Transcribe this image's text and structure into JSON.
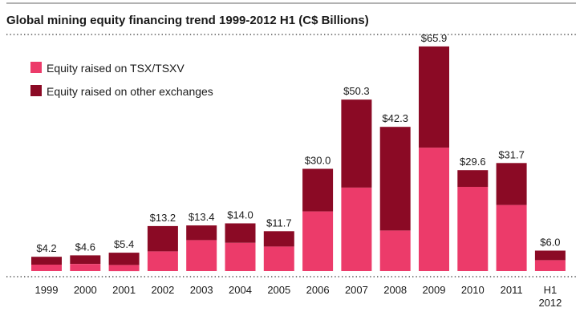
{
  "chart_data": {
    "type": "bar",
    "stacked": true,
    "title": "Global mining equity financing trend 1999-2012 H1 (C$ Billions)",
    "categories": [
      "1999",
      "2000",
      "2001",
      "2002",
      "2003",
      "2004",
      "2005",
      "2006",
      "2007",
      "2008",
      "2009",
      "2010",
      "2011",
      "H1 2012"
    ],
    "category_labels": [
      [
        "1999"
      ],
      [
        "2000"
      ],
      [
        "2001"
      ],
      [
        "2002"
      ],
      [
        "2003"
      ],
      [
        "2004"
      ],
      [
        "2005"
      ],
      [
        "2006"
      ],
      [
        "2007"
      ],
      [
        "2008"
      ],
      [
        "2009"
      ],
      [
        "2010"
      ],
      [
        "2011"
      ],
      [
        "H1",
        "2012"
      ]
    ],
    "totals": [
      4.2,
      4.6,
      5.4,
      13.2,
      13.4,
      14.0,
      11.7,
      30.0,
      50.3,
      42.3,
      65.9,
      29.6,
      31.7,
      6.0
    ],
    "total_labels": [
      "$4.2",
      "$4.6",
      "$5.4",
      "$13.2",
      "$13.4",
      "$14.0",
      "$11.7",
      "$30.0",
      "$50.3",
      "$42.3",
      "$65.9",
      "$29.6",
      "$31.7",
      "$6.0"
    ],
    "series": [
      {
        "name": "Equity raised on TSX/TSXV",
        "color": "#ec3b6a",
        "values": [
          1.9,
          2.1,
          1.8,
          5.8,
          9.1,
          8.3,
          7.2,
          17.5,
          24.5,
          11.9,
          36.2,
          24.7,
          19.4,
          3.2
        ]
      },
      {
        "name": "Equity raised on other exchanges",
        "color": "#8b0a25",
        "values": [
          2.3,
          2.5,
          3.6,
          7.4,
          4.3,
          5.7,
          4.5,
          12.5,
          25.8,
          30.4,
          29.7,
          4.9,
          12.3,
          2.8
        ]
      }
    ],
    "ylim": [
      0,
      72
    ],
    "legend_position": "top-left",
    "grid": false
  }
}
